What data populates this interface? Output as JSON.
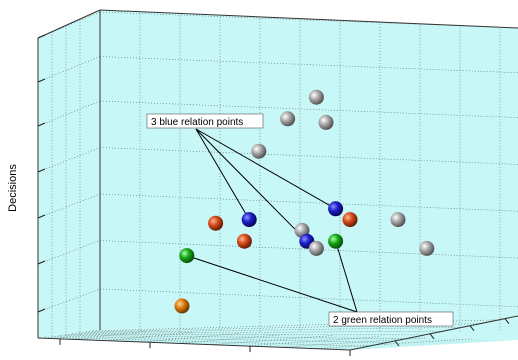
{
  "chart_data": {
    "type": "scatter",
    "title": "",
    "ylabel": "Decisions",
    "xlabel": "",
    "zlabel": "",
    "grid": true,
    "colors": {
      "background": "#c8f7f7",
      "grey": "#8c8c8c",
      "blue": "#1f1fb4",
      "red": "#c8461e",
      "green": "#1aa31a",
      "orange": "#d2780f"
    },
    "points": [
      {
        "color": "grey",
        "x": 0.58,
        "y": 0.73
      },
      {
        "color": "grey",
        "x": 0.52,
        "y": 0.67
      },
      {
        "color": "grey",
        "x": 0.6,
        "y": 0.66
      },
      {
        "color": "grey",
        "x": 0.46,
        "y": 0.58
      },
      {
        "color": "blue",
        "x": 0.62,
        "y": 0.42
      },
      {
        "color": "red",
        "x": 0.65,
        "y": 0.39
      },
      {
        "color": "grey",
        "x": 0.75,
        "y": 0.39
      },
      {
        "color": "blue",
        "x": 0.44,
        "y": 0.39
      },
      {
        "color": "red",
        "x": 0.37,
        "y": 0.38
      },
      {
        "color": "grey",
        "x": 0.55,
        "y": 0.36
      },
      {
        "color": "blue",
        "x": 0.56,
        "y": 0.33
      },
      {
        "color": "red",
        "x": 0.43,
        "y": 0.33
      },
      {
        "color": "green",
        "x": 0.62,
        "y": 0.33
      },
      {
        "color": "grey",
        "x": 0.58,
        "y": 0.31
      },
      {
        "color": "grey",
        "x": 0.81,
        "y": 0.31
      },
      {
        "color": "green",
        "x": 0.31,
        "y": 0.29
      },
      {
        "color": "orange",
        "x": 0.3,
        "y": 0.15
      }
    ],
    "annotations": [
      {
        "text": "3 blue relation points",
        "targets": [
          "blue"
        ]
      },
      {
        "text": "2 green relation points",
        "targets": [
          "green"
        ]
      }
    ]
  }
}
